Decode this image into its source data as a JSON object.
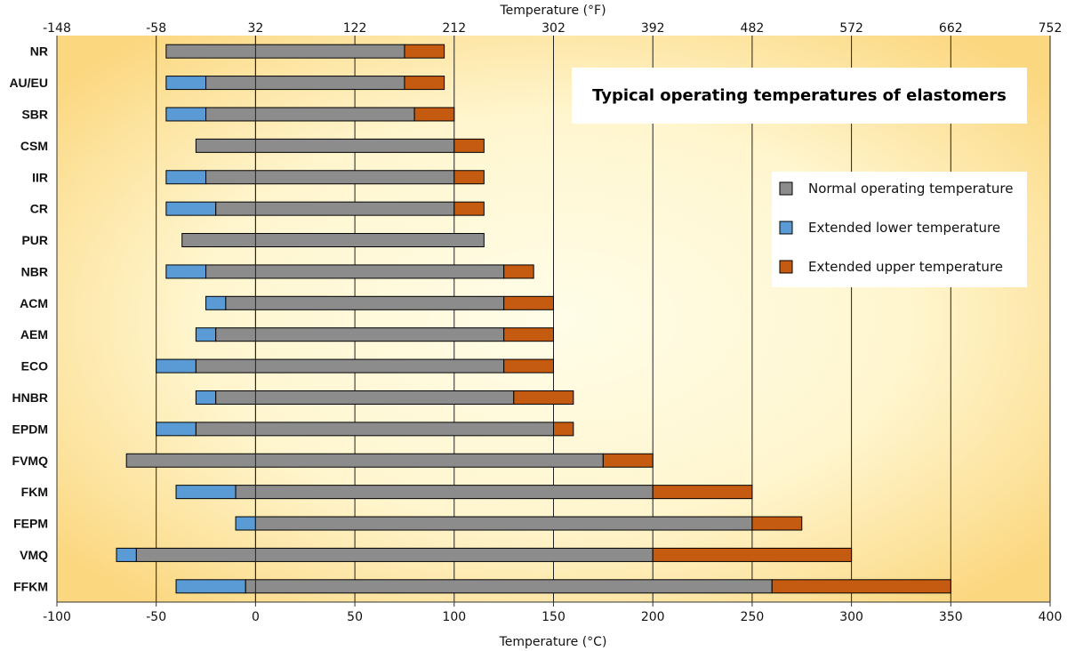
{
  "chart_data": {
    "type": "bar",
    "orientation": "horizontal",
    "stacked": true,
    "title": "Typical operating temperatures of elastomers",
    "xlabel": "Temperature (°C)",
    "x2label": "Temperature (°F)",
    "xlim": [
      -100,
      400
    ],
    "xticks": [
      -100,
      -50,
      0,
      50,
      100,
      150,
      200,
      250,
      300,
      350,
      400
    ],
    "x2ticks": [
      -148,
      -58,
      32,
      122,
      212,
      302,
      392,
      482,
      572,
      662,
      752
    ],
    "legend_position": "right",
    "legend": [
      {
        "name": "Normal operating temperature",
        "color": "#8c8c8c"
      },
      {
        "name": "Extended lower temperature",
        "color": "#5b9bd5"
      },
      {
        "name": "Extended upper temperature",
        "color": "#c55a11"
      }
    ],
    "categories": [
      "NR",
      "AU/EU",
      "SBR",
      "CSM",
      "IIR",
      "CR",
      "PUR",
      "NBR",
      "ACM",
      "AEM",
      "ECO",
      "HNBR",
      "EPDM",
      "FVMQ",
      "FKM",
      "FEPM",
      "VMQ",
      "FFKM"
    ],
    "series": [
      {
        "name": "Extended lower temperature",
        "lows": [
          null,
          -45,
          -45,
          null,
          -45,
          -45,
          null,
          -45,
          -25,
          -30,
          -50,
          -30,
          -50,
          null,
          -40,
          -10,
          -70,
          -40
        ]
      },
      {
        "name": "Normal operating temperature",
        "lows": [
          -45,
          -25,
          -25,
          -30,
          -25,
          -20,
          -37,
          -25,
          -15,
          -20,
          -30,
          -20,
          -30,
          -65,
          -10,
          0,
          -60,
          -5
        ],
        "highs": [
          75,
          75,
          80,
          100,
          100,
          100,
          115,
          125,
          125,
          125,
          125,
          130,
          150,
          175,
          200,
          250,
          200,
          260
        ]
      },
      {
        "name": "Extended upper temperature",
        "highs": [
          95,
          95,
          100,
          115,
          115,
          115,
          null,
          140,
          150,
          150,
          150,
          160,
          160,
          200,
          250,
          275,
          300,
          350
        ]
      }
    ]
  }
}
